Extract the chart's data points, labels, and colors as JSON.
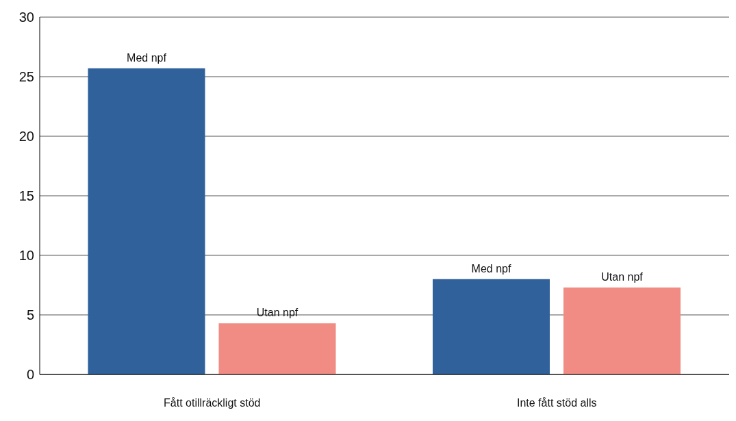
{
  "chart_data": {
    "type": "bar",
    "categories": [
      "Fått otillräckligt stöd",
      "Inte fått stöd alls"
    ],
    "series": [
      {
        "name": "Med npf",
        "color": "#30619b",
        "values": [
          25.7,
          8.0
        ]
      },
      {
        "name": "Utan npf",
        "color": "#f08c84",
        "values": [
          4.3,
          7.3
        ]
      }
    ],
    "ylim": [
      0,
      30
    ],
    "yticks": [
      0,
      5,
      10,
      15,
      20,
      25,
      30
    ],
    "grid": "y",
    "legend": false
  }
}
